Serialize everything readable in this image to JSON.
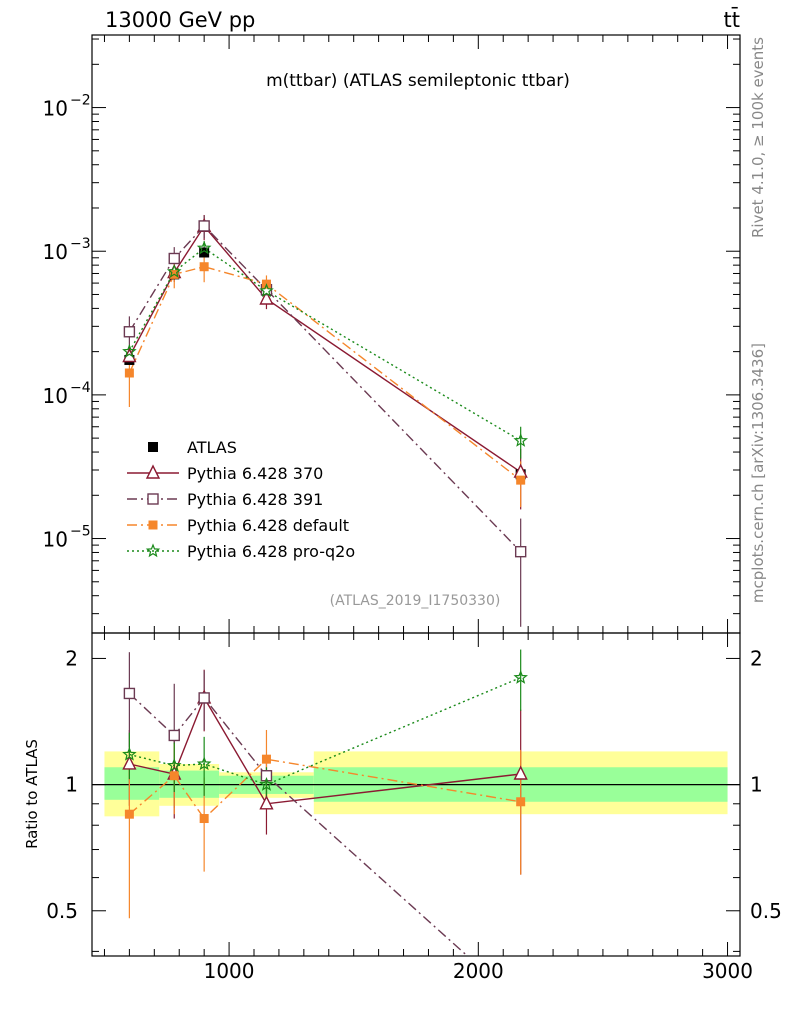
{
  "header": {
    "energy_label": "13000 GeV pp",
    "process_label": "tt̄"
  },
  "side": {
    "rivet_label": "Rivet 4.1.0, ≥ 100k events",
    "source_label": "mcplots.cern.ch [arXiv:1306.3436]"
  },
  "chart_data": {
    "type": "line",
    "title": "m(ttbar) (ATLAS semileptonic ttbar)",
    "analysis_tag": "(ATLAS_2019_I1750330)",
    "xlabel": "",
    "xlim": [
      450,
      3050
    ],
    "x_ticks": [
      1000,
      2000,
      3000
    ],
    "x_tick_labels": [
      "1000",
      "2000",
      "3000"
    ],
    "top": {
      "yscale": "log",
      "ylim": [
        2.2e-06,
        0.032
      ],
      "y_tick_labels": [
        {
          "base": "10",
          "exp": "−2",
          "value": 0.01
        },
        {
          "base": "10",
          "exp": "−3",
          "value": 0.001
        },
        {
          "base": "10",
          "exp": "−4",
          "value": 0.0001
        },
        {
          "base": "10",
          "exp": "−5",
          "value": 1e-05
        }
      ]
    },
    "ratio": {
      "ylabel": "Ratio to ATLAS",
      "ylim": [
        0.39,
        2.3
      ],
      "y_tick_labels": [
        "0.5",
        "1",
        "2"
      ],
      "y_tick_values": [
        0.5,
        1,
        2
      ],
      "band_edges": [
        500,
        720,
        960,
        1340,
        3000
      ],
      "band_inner": [
        [
          0.92,
          1.1
        ],
        [
          0.93,
          1.08
        ],
        [
          0.95,
          1.05
        ],
        [
          0.91,
          1.1
        ]
      ],
      "band_outer": [
        [
          0.84,
          1.2
        ],
        [
          0.89,
          1.12
        ],
        [
          0.93,
          1.07
        ],
        [
          0.85,
          1.2
        ]
      ]
    },
    "x": [
      600,
      780,
      900,
      1150,
      2170
    ],
    "data": {
      "name": "ATLAS",
      "values": [
        0.000175,
        0.00069,
        0.00098,
        0.00053,
        2.8e-05
      ]
    },
    "series": [
      {
        "name": "Pythia 6.428 370",
        "color": "#8b1a32",
        "marker": "triangle",
        "dash": "",
        "values": [
          0.000185,
          0.00071,
          0.00149,
          0.000465,
          2.9e-05
        ],
        "errors_rel": [
          0.12,
          0.14,
          0.2,
          0.15,
          0.45
        ],
        "ratio": [
          1.12,
          1.06,
          1.61,
          0.9,
          1.06
        ],
        "ratio_err": [
          0.23,
          0.23,
          0.27,
          0.14,
          0.45
        ]
      },
      {
        "name": "Pythia 6.428 391",
        "color": "#6b3a52",
        "marker": "square",
        "dash": "10,4,2,4",
        "values": [
          0.000275,
          0.00089,
          0.0015,
          0.00054,
          8.1e-06
        ],
        "errors_rel": [
          0.28,
          0.2,
          0.18,
          0.12,
          0.7
        ],
        "ratio": [
          1.65,
          1.31,
          1.61,
          1.05,
          0.3
        ],
        "ratio_err": [
          0.42,
          0.43,
          0.26,
          0.12,
          0.0
        ]
      },
      {
        "name": "Pythia 6.428 default",
        "color": "#f5862b",
        "marker": "filled-square",
        "dash": "10,4,2,4",
        "values": [
          0.000142,
          0.00069,
          0.00078,
          0.00059,
          2.55e-05
        ],
        "errors_rel": [
          0.42,
          0.2,
          0.22,
          0.15,
          0.35
        ],
        "ratio": [
          0.85,
          1.05,
          0.83,
          1.15,
          0.91
        ],
        "ratio_err": [
          0.37,
          0.2,
          0.21,
          0.2,
          0.3
        ]
      },
      {
        "name": "Pythia 6.428 pro-q2o",
        "color": "#1a8a1a",
        "marker": "star",
        "dash": "2,3",
        "values": [
          0.0002,
          0.00072,
          0.00105,
          0.00053,
          4.8e-05
        ],
        "errors_rel": [
          0.1,
          0.1,
          0.12,
          0.1,
          0.25
        ],
        "ratio": [
          1.18,
          1.11,
          1.12,
          1.0,
          1.8
        ],
        "ratio_err": [
          0.15,
          0.15,
          0.18,
          0.1,
          0.3
        ]
      }
    ]
  }
}
